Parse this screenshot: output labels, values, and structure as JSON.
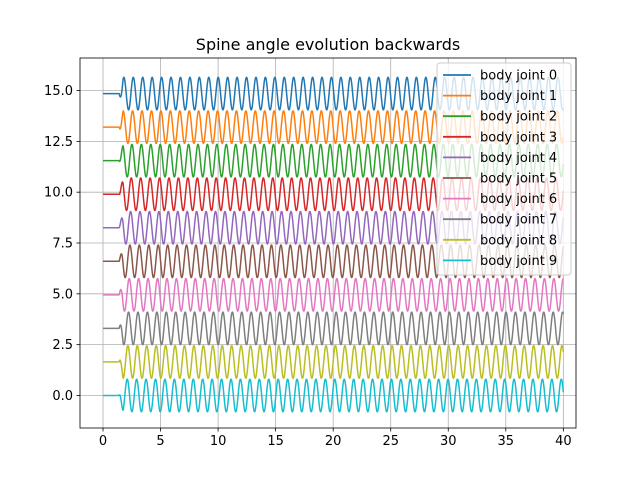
{
  "chart_data": {
    "type": "line",
    "title": "Spine angle evolution backwards",
    "xlabel": "",
    "ylabel": "",
    "xlim": [
      -2,
      41.1
    ],
    "ylim": [
      -1.6,
      16.6
    ],
    "grid": true,
    "legend_placement": "top-right",
    "x_ticks": [
      0,
      5,
      10,
      15,
      20,
      25,
      30,
      35,
      40
    ],
    "x_tick_labels": [
      "0",
      "5",
      "10",
      "15",
      "20",
      "25",
      "30",
      "35",
      "40"
    ],
    "y_ticks": [
      0.0,
      2.5,
      5.0,
      7.5,
      10.0,
      12.5,
      15.0
    ],
    "y_tick_labels": [
      "0.0",
      "2.5",
      "5.0",
      "7.5",
      "10.0",
      "12.5",
      "15.0"
    ],
    "signal": {
      "t_start": 0,
      "t_end": 40,
      "onset": 1.4,
      "period": 0.82,
      "amplitude": 0.8,
      "baseline_offset_step": 1.65
    },
    "series": [
      {
        "name": "body joint 0",
        "color": "#1f77b4",
        "baseline": 14.85
      },
      {
        "name": "body joint 1",
        "color": "#ff7f0e",
        "baseline": 13.2
      },
      {
        "name": "body joint 2",
        "color": "#2ca02c",
        "baseline": 11.55
      },
      {
        "name": "body joint 3",
        "color": "#d62728",
        "baseline": 9.9
      },
      {
        "name": "body joint 4",
        "color": "#9467bd",
        "baseline": 8.25
      },
      {
        "name": "body joint 5",
        "color": "#8c564b",
        "baseline": 6.6
      },
      {
        "name": "body joint 6",
        "color": "#e377c2",
        "baseline": 4.95
      },
      {
        "name": "body joint 7",
        "color": "#7f7f7f",
        "baseline": 3.3
      },
      {
        "name": "body joint 8",
        "color": "#bcbd22",
        "baseline": 1.65
      },
      {
        "name": "body joint 9",
        "color": "#17becf",
        "baseline": 0.0
      }
    ]
  }
}
